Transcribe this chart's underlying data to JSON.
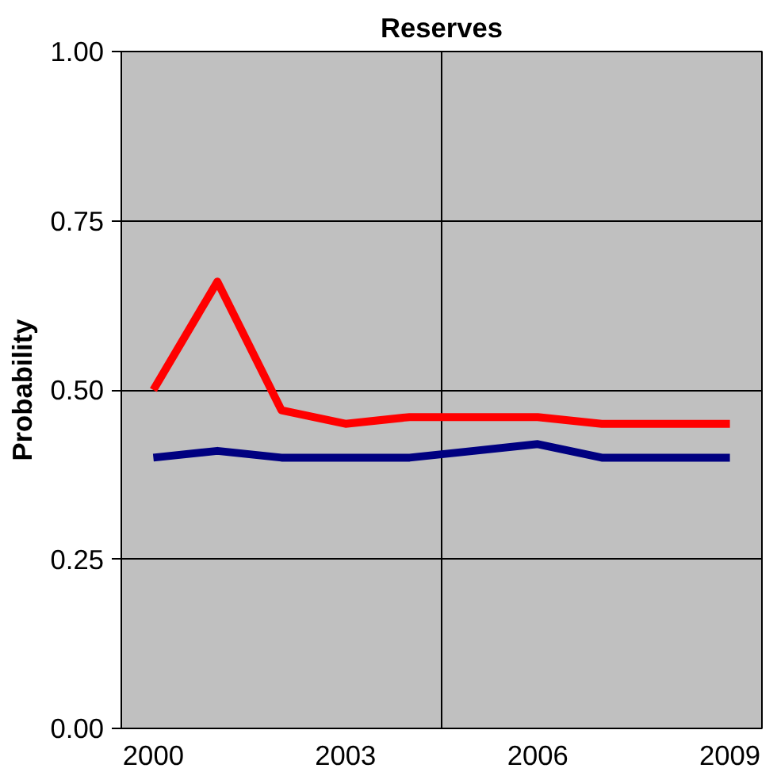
{
  "chart_data": {
    "type": "line",
    "title": "Reserves",
    "ylabel": "Probability",
    "categories": [
      "2000",
      null,
      null,
      "2003",
      null,
      null,
      "2006",
      null,
      null,
      "2009"
    ],
    "series": [
      {
        "color": "#ff0000",
        "values": [
          0.5,
          0.66,
          0.47,
          0.45,
          0.46,
          0.46,
          0.46,
          0.45,
          0.45,
          0.45
        ]
      },
      {
        "color": "#000080",
        "values": [
          0.4,
          0.41,
          0.4,
          0.4,
          0.4,
          0.41,
          0.42,
          0.4,
          0.4,
          0.4
        ]
      }
    ],
    "ylim": [
      0,
      1
    ],
    "yticks": [
      {
        "value": 0,
        "label": "0.00"
      },
      {
        "value": 0.25,
        "label": "0.25"
      },
      {
        "value": 0.5,
        "label": "0.50"
      },
      {
        "value": 0.75,
        "label": "0.75"
      },
      {
        "value": 1,
        "label": "1.00"
      }
    ],
    "grid": true,
    "marker": "none",
    "line_style": "solid"
  }
}
